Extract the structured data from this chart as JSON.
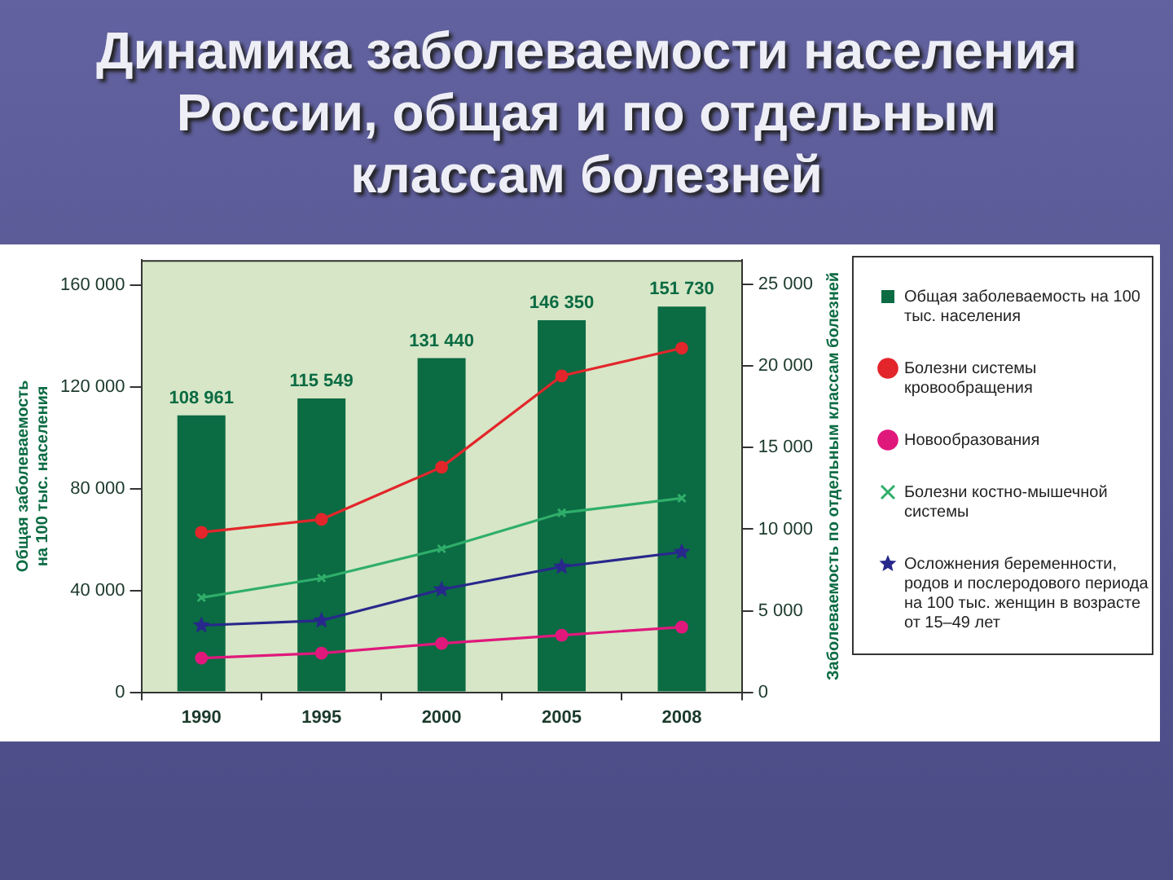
{
  "chart_data": {
    "type": "bar",
    "title": "Динамика заболеваемости населения России, общая и по отдельным классам болезней",
    "ylabel": "Общая заболеваемость на 100 тыс. населения",
    "y2label": "Заболеваемость по отдельным классам болезней",
    "categories": [
      "1990",
      "1995",
      "2000",
      "2005",
      "2008"
    ],
    "series": [
      {
        "name": "Общая заболеваемость на 100 тыс. населения",
        "color": "#0b6b43",
        "values": [
          108961,
          115549,
          131440,
          146350,
          151730
        ],
        "value_labels": [
          "108 961",
          "115 549",
          "131 440",
          "146 350",
          "151 730"
        ]
      },
      {
        "name": "Болезни системы кровообращения",
        "type": "line",
        "axis": "y2",
        "color": "#e3262b",
        "marker": "circle",
        "values": [
          9800,
          10600,
          13800,
          19400,
          21100
        ]
      },
      {
        "name": "Новообразования",
        "type": "line",
        "axis": "y2",
        "color": "#e0187c",
        "marker": "circle",
        "values": [
          2100,
          2400,
          3000,
          3500,
          4000
        ]
      },
      {
        "name": "Болезни костно-мышечной системы",
        "type": "line",
        "axis": "y2",
        "color": "#2fae6a",
        "marker": "cross",
        "values": [
          5800,
          7000,
          8800,
          11000,
          11900
        ]
      },
      {
        "name": "Осложнения беременности, родов и послеродового периода на 100 тыс. женщин в возрасте от 15–49 лет",
        "type": "line",
        "axis": "y2",
        "color": "#28288c",
        "marker": "star",
        "values": [
          4100,
          4400,
          6300,
          7700,
          8600
        ]
      }
    ],
    "ylim": [
      0,
      170000
    ],
    "yticks": [
      {
        "value": 0,
        "label": "0"
      },
      {
        "value": 40000,
        "label": "40 000"
      },
      {
        "value": 80000,
        "label": "80 000"
      },
      {
        "value": 120000,
        "label": "120 000"
      },
      {
        "value": 160000,
        "label": "160 000"
      }
    ],
    "y2lim": [
      0,
      26500
    ],
    "y2ticks": [
      {
        "value": 0,
        "label": "0"
      },
      {
        "value": 5000,
        "label": "5 000"
      },
      {
        "value": 10000,
        "label": "10 000"
      },
      {
        "value": 15000,
        "label": "15 000"
      },
      {
        "value": 20000,
        "label": "20 000"
      },
      {
        "value": 25000,
        "label": "25 000"
      }
    ],
    "grid": false,
    "legend": "right"
  }
}
